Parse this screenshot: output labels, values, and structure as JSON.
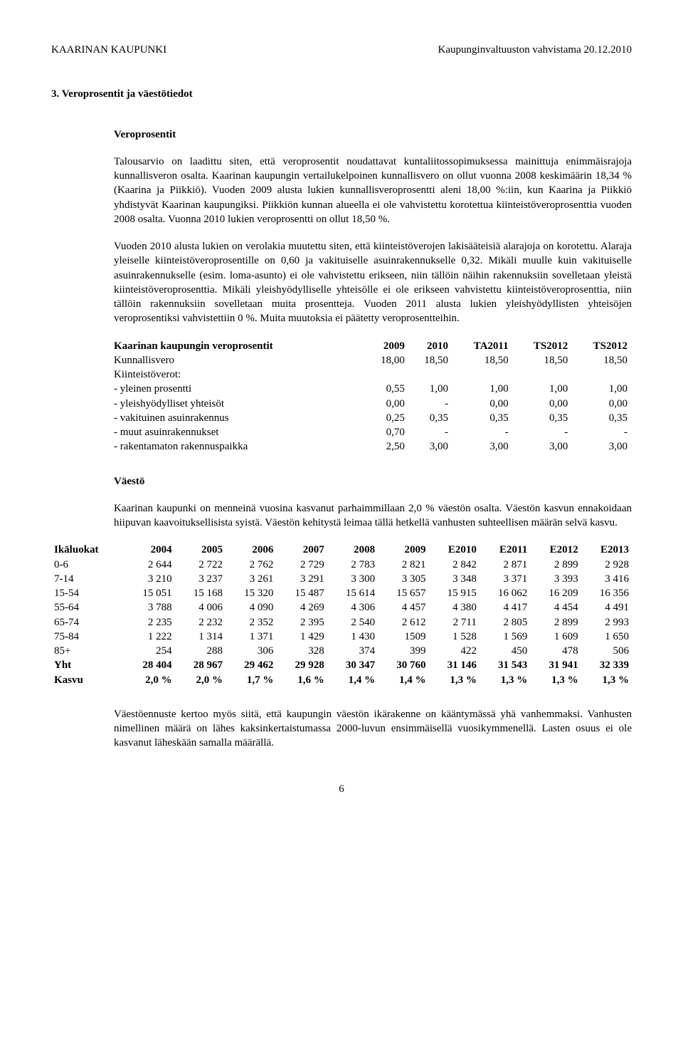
{
  "header": {
    "left": "KAARINAN KAUPUNKI",
    "right": "Kaupunginvaltuuston vahvistama 20.12.2010"
  },
  "section": {
    "title": "3. Veroprosentit ja väestötiedot",
    "sub1": "Veroprosentit",
    "p1": "Talousarvio on laadittu siten, että veroprosentit noudattavat kuntaliitossopimuksessa mainittuja enimmäisrajoja kunnallisveron osalta. Kaarinan kaupungin vertailukelpoinen kunnallisvero on ollut vuonna 2008 keskimäärin 18,34 % (Kaarina ja Piikkiö). Vuoden 2009 alusta lukien kunnallisveroprosentti aleni 18,00 %:iin, kun Kaarina ja Piikkiö yhdistyvät Kaarinan kaupungiksi. Piikkiön kunnan alueella ei ole vahvistettu korotettua kiinteistöveroprosenttia vuoden 2008 osalta. Vuonna 2010 lukien veroprosentti on ollut 18,50 %.",
    "p2": "Vuoden 2010 alusta lukien on verolakia muutettu siten, että kiinteistöverojen lakisääteisiä alarajoja on korotettu. Alaraja yleiselle kiinteistöveroprosentille on 0,60 ja vakituiselle asuinrakennukselle 0,32. Mikäli muulle kuin vakituiselle asuinrakennukselle (esim. loma-asunto) ei ole vahvistettu erikseen, niin tällöin näihin rakennuksiin sovelletaan yleistä kiinteistöveroprosenttia. Mikäli yleishyödylliselle yhteisölle ei ole erikseen vahvistettu kiinteistöveroprosenttia, niin tällöin rakennuksiin sovelletaan muita prosentteja. Vuoden 2011 alusta lukien yleishyödyllisten yhteisöjen veroprosentiksi vahvistettiin 0 %. Muita muutoksia ei päätetty veroprosentteihin.",
    "tax_table": {
      "header": [
        "Kaarinan kaupungin veroprosentit",
        "2009",
        "2010",
        "TA2011",
        "TS2012",
        "TS2012"
      ],
      "rows": [
        [
          "Kunnallisvero",
          "18,00",
          "18,50",
          "18,50",
          "18,50",
          "18,50"
        ],
        [
          "Kiinteistöverot:",
          "",
          "",
          "",
          "",
          ""
        ],
        [
          "- yleinen prosentti",
          "0,55",
          "1,00",
          "1,00",
          "1,00",
          "1,00"
        ],
        [
          "- yleishyödylliset yhteisöt",
          "0,00",
          "-",
          "0,00",
          "0,00",
          "0,00"
        ],
        [
          "- vakituinen asuinrakennus",
          "0,25",
          "0,35",
          "0,35",
          "0,35",
          "0,35"
        ],
        [
          "- muut asuinrakennukset",
          "0,70",
          "-",
          "-",
          "-",
          "-"
        ],
        [
          "- rakentamaton rakennuspaikka",
          "2,50",
          "3,00",
          "3,00",
          "3,00",
          "3,00"
        ]
      ]
    },
    "sub2": "Väestö",
    "p3": "Kaarinan kaupunki on menneinä vuosina kasvanut parhaimmillaan 2,0 % väestön osalta. Väestön kasvun ennakoidaan hiipuvan kaavoituksellisista syistä. Väestön kehitystä leimaa tällä hetkellä vanhusten suhteellisen määrän selvä kasvu.",
    "pop_table": {
      "header": [
        "Ikäluokat",
        "2004",
        "2005",
        "2006",
        "2007",
        "2008",
        "2009",
        "E2010",
        "E2011",
        "E2012",
        "E2013"
      ],
      "rows": [
        [
          "0-6",
          "2 644",
          "2 722",
          "2 762",
          "2 729",
          "2 783",
          "2 821",
          "2 842",
          "2 871",
          "2 899",
          "2 928"
        ],
        [
          "7-14",
          "3 210",
          "3 237",
          "3 261",
          "3 291",
          "3 300",
          "3 305",
          "3 348",
          "3 371",
          "3 393",
          "3 416"
        ],
        [
          "15-54",
          "15 051",
          "15 168",
          "15 320",
          "15 487",
          "15 614",
          "15 657",
          "15 915",
          "16 062",
          "16 209",
          "16 356"
        ],
        [
          "55-64",
          "3 788",
          "4 006",
          "4 090",
          "4 269",
          "4 306",
          "4 457",
          "4 380",
          "4 417",
          "4 454",
          "4 491"
        ],
        [
          "65-74",
          "2 235",
          "2 232",
          "2 352",
          "2 395",
          "2 540",
          "2 612",
          "2 711",
          "2 805",
          "2 899",
          "2 993"
        ],
        [
          "75-84",
          "1 222",
          "1 314",
          "1 371",
          "1 429",
          "1 430",
          "1509",
          "1 528",
          "1 569",
          "1 609",
          "1 650"
        ],
        [
          "85+",
          "254",
          "288",
          "306",
          "328",
          "374",
          "399",
          "422",
          "450",
          "478",
          "506"
        ],
        [
          "Yht",
          "28 404",
          "28 967",
          "29 462",
          "29 928",
          "30 347",
          "30 760",
          "31 146",
          "31 543",
          "31 941",
          "32 339"
        ],
        [
          "Kasvu",
          "2,0 %",
          "2,0 %",
          "1,7 %",
          "1,6 %",
          "1,4 %",
          "1,4 %",
          "1,3 %",
          "1,3 %",
          "1,3 %",
          "1,3 %"
        ]
      ],
      "bold_rows": [
        7,
        8
      ]
    },
    "p4": "Väestöennuste kertoo myös siitä, että kaupungin väestön ikärakenne on kääntymässä yhä vanhemmaksi. Vanhusten nimellinen määrä on lähes kaksinkertaistumassa 2000-luvun ensimmäisellä vuosikymmenellä. Lasten osuus ei ole kasvanut läheskään samalla määrällä."
  },
  "page_number": "6"
}
